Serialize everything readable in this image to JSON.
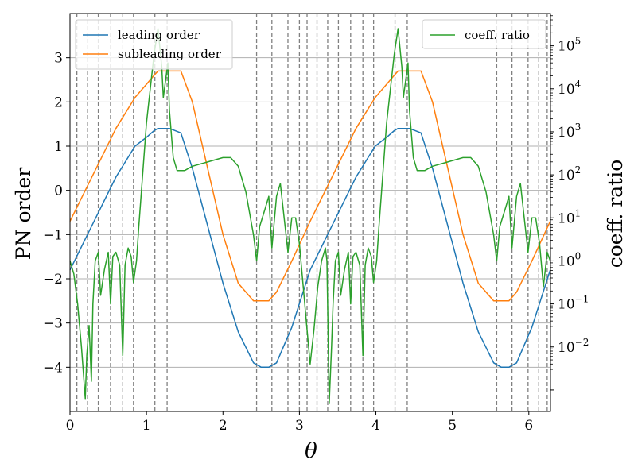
{
  "chart_data": {
    "type": "line",
    "xlabel": "θ",
    "ylabel": "PN order",
    "y2label": "coeff. ratio",
    "xlim": [
      0,
      6.283
    ],
    "ylim": [
      -5.0,
      4.0
    ],
    "y2_scale": "log",
    "y2lim_exponent": [
      -3.5,
      5.75
    ],
    "grid": "horizontal",
    "x_ticks": [
      "0",
      "1",
      "2",
      "3",
      "4",
      "5",
      "6"
    ],
    "y_ticks": [
      "3",
      "2",
      "1",
      "0",
      "−1",
      "−2",
      "−3",
      "−4"
    ],
    "y2_ticks": [
      {
        "exp": 5,
        "label": "10",
        "sup": "5"
      },
      {
        "exp": 4,
        "label": "10",
        "sup": "4"
      },
      {
        "exp": 3,
        "label": "10",
        "sup": "3"
      },
      {
        "exp": 2,
        "label": "10",
        "sup": "2"
      },
      {
        "exp": 1,
        "label": "10",
        "sup": "1"
      },
      {
        "exp": 0,
        "label": "10",
        "sup": "0"
      },
      {
        "exp": -1,
        "label": "10",
        "sup": "−1"
      },
      {
        "exp": -2,
        "label": "10",
        "sup": "−2"
      }
    ],
    "legend_left": {
      "placement": "top-left",
      "entries": [
        "leading order",
        "subleading order"
      ]
    },
    "legend_right": {
      "placement": "top-right",
      "entries": [
        "coeff. ratio"
      ]
    },
    "colors": {
      "leading": "#1f77b4",
      "subleading": "#ff7f0e",
      "ratio": "#2ca02c",
      "vlines": "#808080",
      "grid": "#b0b0b0"
    },
    "vertical_lines": [
      0.09,
      0.23,
      0.37,
      0.53,
      0.69,
      0.83,
      1.11,
      1.27,
      2.44,
      2.64,
      2.85,
      3.0,
      3.1,
      3.23,
      3.37,
      3.51,
      3.67,
      3.83,
      3.97,
      4.25,
      4.41,
      5.58,
      5.78,
      5.99,
      6.13,
      6.24
    ],
    "series": [
      {
        "name": "leading order",
        "axis": "left",
        "x": [
          0,
          0.2,
          0.4,
          0.6,
          0.85,
          1.0,
          1.1,
          1.15,
          1.3,
          1.45,
          1.6,
          1.8,
          2.0,
          2.2,
          2.4,
          2.5,
          2.6,
          2.7,
          2.9,
          3.14,
          3.34,
          3.54,
          3.74,
          3.99,
          4.14,
          4.24,
          4.29,
          4.44,
          4.59,
          4.74,
          4.94,
          5.14,
          5.34,
          5.54,
          5.64,
          5.74,
          5.84,
          6.04,
          6.28
        ],
        "y": [
          -1.8,
          -1.1,
          -0.4,
          0.3,
          1.0,
          1.2,
          1.35,
          1.4,
          1.4,
          1.3,
          0.5,
          -0.8,
          -2.1,
          -3.2,
          -3.9,
          -4.0,
          -4.0,
          -3.9,
          -3.1,
          -1.8,
          -1.1,
          -0.4,
          0.3,
          1.0,
          1.2,
          1.35,
          1.4,
          1.4,
          1.3,
          0.5,
          -0.8,
          -2.1,
          -3.2,
          -3.9,
          -4.0,
          -4.0,
          -3.9,
          -3.1,
          -1.8
        ]
      },
      {
        "name": "subleading order",
        "axis": "left",
        "x": [
          0,
          0.2,
          0.4,
          0.6,
          0.85,
          1.0,
          1.1,
          1.15,
          1.3,
          1.45,
          1.6,
          1.8,
          2.0,
          2.2,
          2.4,
          2.5,
          2.6,
          2.7,
          2.9,
          3.14,
          3.34,
          3.54,
          3.74,
          3.99,
          4.14,
          4.24,
          4.29,
          4.44,
          4.59,
          4.74,
          4.94,
          5.14,
          5.34,
          5.54,
          5.64,
          5.74,
          5.84,
          6.04,
          6.28
        ],
        "y": [
          -0.7,
          0.0,
          0.7,
          1.4,
          2.1,
          2.4,
          2.6,
          2.7,
          2.7,
          2.7,
          2.0,
          0.5,
          -1.0,
          -2.1,
          -2.5,
          -2.5,
          -2.5,
          -2.3,
          -1.6,
          -0.7,
          0.0,
          0.7,
          1.4,
          2.1,
          2.4,
          2.6,
          2.7,
          2.7,
          2.7,
          2.0,
          0.5,
          -1.0,
          -2.1,
          -2.5,
          -2.5,
          -2.5,
          -2.3,
          -1.6,
          -0.7
        ]
      },
      {
        "name": "coeff. ratio",
        "axis": "right",
        "x": [
          0,
          0.05,
          0.1,
          0.15,
          0.2,
          0.22,
          0.25,
          0.28,
          0.3,
          0.33,
          0.37,
          0.4,
          0.45,
          0.5,
          0.53,
          0.56,
          0.6,
          0.65,
          0.69,
          0.72,
          0.76,
          0.8,
          0.83,
          0.87,
          0.9,
          0.95,
          1.0,
          1.05,
          1.1,
          1.15,
          1.2,
          1.22,
          1.25,
          1.28,
          1.3,
          1.35,
          1.4,
          1.5,
          1.6,
          1.8,
          2.0,
          2.1,
          2.2,
          2.3,
          2.4,
          2.44,
          2.48,
          2.55,
          2.6,
          2.64,
          2.7,
          2.75,
          2.8,
          2.85,
          2.9,
          2.95,
          3.0,
          3.05,
          3.1,
          3.14,
          3.19,
          3.24,
          3.29,
          3.34,
          3.36,
          3.39,
          3.42,
          3.44,
          3.47,
          3.51,
          3.54,
          3.59,
          3.64,
          3.67,
          3.7,
          3.74,
          3.79,
          3.83,
          3.86,
          3.9,
          3.94,
          3.97,
          4.01,
          4.04,
          4.09,
          4.14,
          4.19,
          4.24,
          4.29,
          4.34,
          4.36,
          4.39,
          4.42,
          4.44,
          4.49,
          4.54,
          4.64,
          4.74,
          4.94,
          5.14,
          5.24,
          5.34,
          5.44,
          5.54,
          5.58,
          5.62,
          5.69,
          5.74,
          5.78,
          5.84,
          5.89,
          5.94,
          5.99,
          6.04,
          6.09,
          6.14,
          6.19,
          6.24,
          6.28
        ],
        "y_exp": [
          0.0,
          -0.3,
          -1.0,
          -2.0,
          -3.2,
          -2.2,
          -1.5,
          -2.8,
          -1.0,
          0.0,
          0.2,
          -0.8,
          -0.2,
          0.2,
          -1.0,
          0.1,
          0.2,
          -0.1,
          -2.2,
          -0.1,
          0.3,
          0.1,
          -0.5,
          0.0,
          0.8,
          2.0,
          3.2,
          4.0,
          4.8,
          5.4,
          4.5,
          3.8,
          4.2,
          4.6,
          3.5,
          2.4,
          2.1,
          2.1,
          2.2,
          2.3,
          2.4,
          2.4,
          2.2,
          1.6,
          0.6,
          0.0,
          0.8,
          1.2,
          1.5,
          0.3,
          1.5,
          1.8,
          1.0,
          0.2,
          1.0,
          1.0,
          0.4,
          -0.6,
          -1.6,
          -2.4,
          -1.6,
          -0.6,
          0.0,
          0.3,
          0.0,
          -3.3,
          -2.0,
          -1.0,
          0.0,
          0.2,
          -0.8,
          -0.2,
          0.2,
          -1.0,
          0.1,
          0.2,
          -0.1,
          -2.2,
          -0.1,
          0.3,
          0.1,
          -0.5,
          0.0,
          0.8,
          2.0,
          3.2,
          4.0,
          4.8,
          5.4,
          4.5,
          3.8,
          4.2,
          4.6,
          3.5,
          2.4,
          2.1,
          2.1,
          2.2,
          2.3,
          2.4,
          2.4,
          2.2,
          1.6,
          0.6,
          0.0,
          0.8,
          1.2,
          1.5,
          0.3,
          1.5,
          1.8,
          1.0,
          0.2,
          1.0,
          1.0,
          0.4,
          -0.6,
          0.2,
          0.0
        ]
      }
    ]
  }
}
